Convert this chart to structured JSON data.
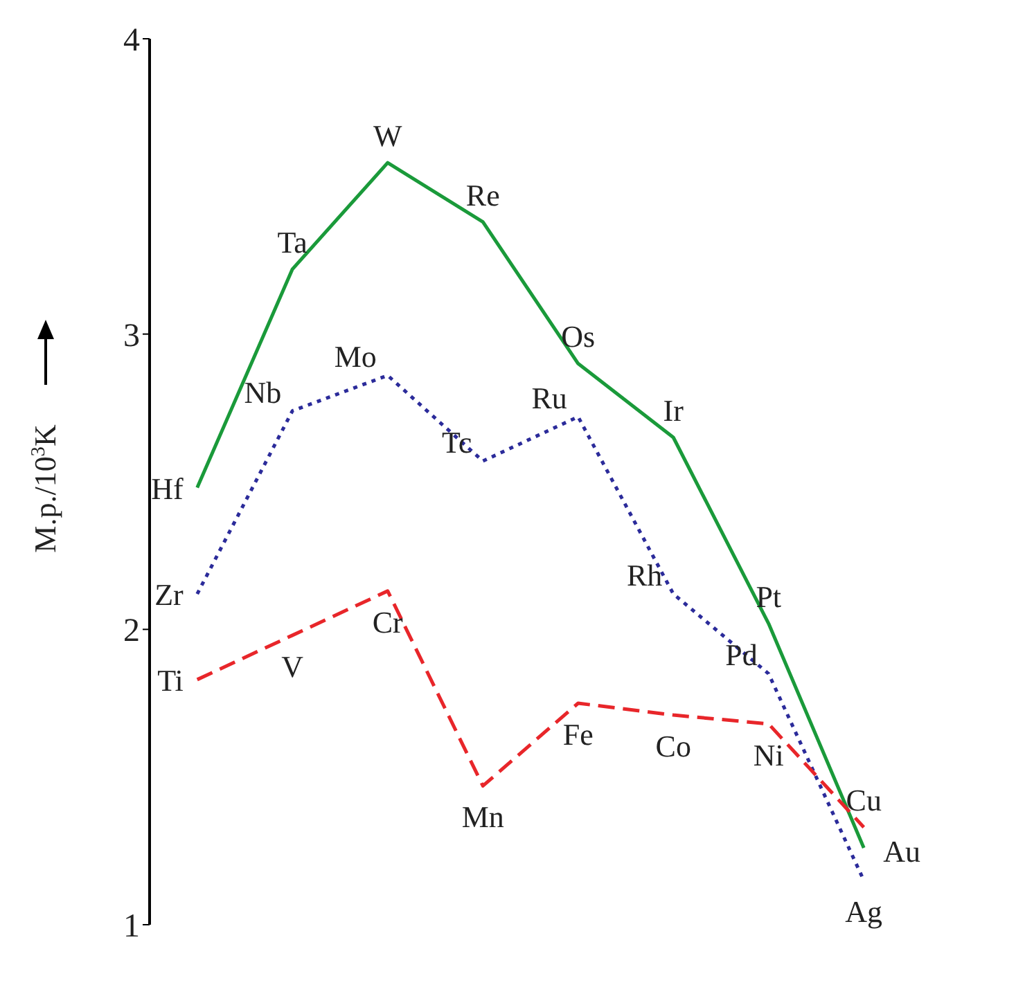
{
  "chart_data": {
    "type": "line",
    "ylabel": "M.p./10$^{3}$K",
    "categories": [
      null,
      null,
      null,
      null,
      null,
      null,
      null,
      null
    ],
    "series": [
      {
        "color": "#1a9a3a",
        "line_style": "solid",
        "values": [
          2.48,
          3.22,
          3.58,
          3.38,
          2.9,
          2.65,
          2.02,
          1.26
        ],
        "value_labels": [
          "Hf",
          "Ta",
          "W",
          "Re",
          "Os",
          "Ir",
          "Pt",
          "Au"
        ]
      },
      {
        "color": "#2b2b9a",
        "line_style": "dotted",
        "values": [
          2.12,
          2.74,
          2.86,
          2.57,
          2.72,
          2.12,
          1.85,
          1.15
        ],
        "value_labels": [
          "Zr",
          "Nb",
          "Mo",
          "Tc",
          "Ru",
          "Rh",
          "Pd",
          "Ag"
        ]
      },
      {
        "color": "#e8262a",
        "line_style": "dashed",
        "values": [
          1.83,
          1.98,
          2.13,
          1.47,
          1.75,
          1.71,
          1.68,
          1.33
        ],
        "value_labels": [
          "Ti",
          "V",
          "Cr",
          "Mn",
          "Fe",
          "Co",
          "Ni",
          "Cu"
        ]
      }
    ],
    "ylim": [
      1,
      4
    ],
    "yticks": [
      1,
      2,
      3,
      4
    ],
    "grid": false,
    "legend": false,
    "marker": "none",
    "tick_labels": "y"
  }
}
